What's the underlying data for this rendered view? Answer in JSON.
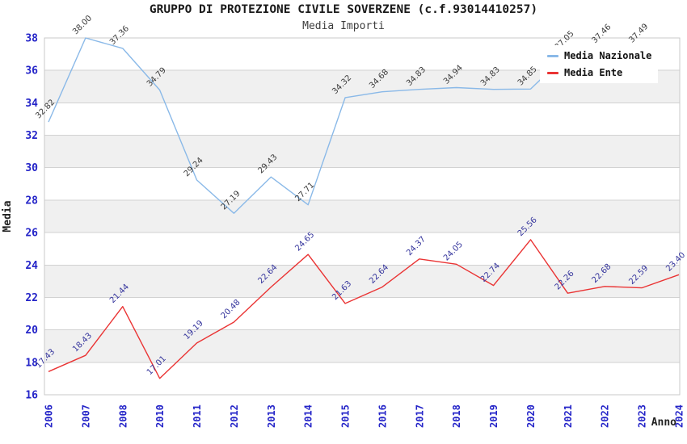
{
  "title": "GRUPPO DI PROTEZIONE CIVILE SOVERZENE (c.f.93014410257)",
  "subtitle": "Media Importi",
  "chart_data": {
    "type": "line",
    "x_axis_label": "Anno",
    "y_axis_label": "Media",
    "categories": [
      "2006",
      "2007",
      "2008",
      "2010",
      "2011",
      "2012",
      "2013",
      "2014",
      "2015",
      "2016",
      "2017",
      "2018",
      "2019",
      "2020",
      "2021",
      "2022",
      "2023",
      "2024"
    ],
    "series": [
      {
        "name": "Media Nazionale",
        "color": "#8ab9e8",
        "label_color": "#3c3c3c",
        "values": [
          32.82,
          38.0,
          37.36,
          34.79,
          29.24,
          27.19,
          29.43,
          27.71,
          34.32,
          34.68,
          34.83,
          34.94,
          34.83,
          34.85,
          37.05,
          37.46,
          37.49,
          null
        ]
      },
      {
        "name": "Media Ente",
        "color": "#ea3434",
        "label_color": "#34349c",
        "values": [
          17.43,
          18.43,
          21.44,
          17.01,
          19.19,
          20.48,
          22.64,
          24.65,
          21.63,
          22.64,
          24.37,
          24.05,
          22.74,
          25.56,
          22.26,
          22.68,
          22.59,
          23.4
        ]
      }
    ],
    "ylim": [
      16,
      38
    ],
    "yticks": [
      16,
      18,
      20,
      22,
      24,
      26,
      28,
      30,
      32,
      34,
      36,
      38
    ],
    "grid": true,
    "band_color": "#f0f0f0",
    "gridline_color": "#d2d2d2",
    "border_color": "#c9c9c9",
    "tick_label_color": "#2424c8",
    "axis_title_color": "#222222",
    "legend_position": "top-right"
  }
}
